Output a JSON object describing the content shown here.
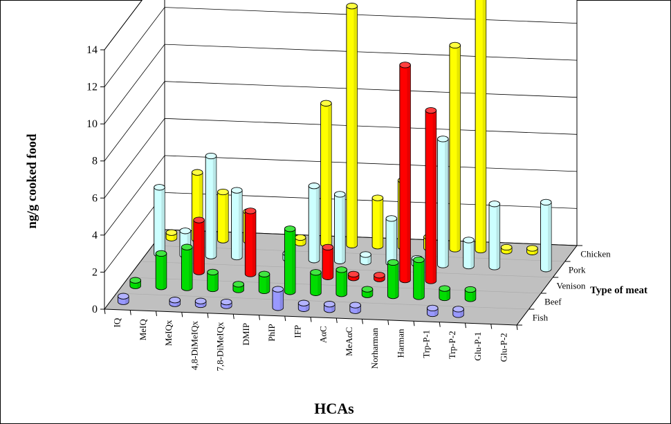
{
  "chart_data": {
    "type": "bar",
    "subtype": "3d-column",
    "title": "",
    "xlabel": "HCAs",
    "ylabel": "ng/g cooked food",
    "zlabel": "Type of meat",
    "ylim": [
      0,
      14
    ],
    "yticks": [
      "0",
      "2",
      "4",
      "6",
      "8",
      "10",
      "12",
      "14"
    ],
    "grid": true,
    "categories": [
      "IQ",
      "MeIQ",
      "MeIQx",
      "4,8-DiMeIQx",
      "7,8-DiMeIQx",
      "DMIP",
      "PhIP",
      "IFP",
      "AαC",
      "MeAαC",
      "Norharman",
      "Harman",
      "Trp-P-1",
      "Trp-P-2",
      "Glu-P-1",
      "Glu-P-2"
    ],
    "series": [
      {
        "name": "Fish",
        "color": "#9999ff",
        "values": [
          0.3,
          null,
          0.2,
          0.2,
          0.2,
          null,
          1.0,
          0.3,
          0.3,
          0.3,
          null,
          null,
          0.3,
          0.3,
          null,
          null
        ]
      },
      {
        "name": "Beef",
        "color": "#00dd00",
        "values": [
          0.3,
          1.8,
          2.2,
          0.9,
          0.3,
          0.9,
          3.4,
          1.1,
          1.3,
          0.3,
          1.8,
          2.0,
          0.5,
          0.5,
          null,
          null
        ]
      },
      {
        "name": "Venison",
        "color": "#ff0000",
        "values": [
          null,
          null,
          2.8,
          null,
          3.4,
          null,
          null,
          1.6,
          0.2,
          0.2,
          11.6,
          9.2,
          null,
          null,
          null,
          null
        ]
      },
      {
        "name": "Pork",
        "color": "#ccffff",
        "values": [
          3.6,
          1.3,
          5.4,
          3.6,
          null,
          0.3,
          4.0,
          3.6,
          0.4,
          2.4,
          0.3,
          6.8,
          1.4,
          3.4,
          null,
          3.6
        ]
      },
      {
        "name": "Chicken",
        "color": "#ffff00",
        "values": [
          0.3,
          3.6,
          2.6,
          1.6,
          null,
          0.3,
          7.6,
          12.9,
          2.6,
          3.6,
          0.6,
          11.0,
          14.0,
          0.2,
          0.2,
          null
        ]
      }
    ],
    "legend": "none"
  },
  "colors": {
    "floor": "#c0c0c0",
    "plot_frame": "#000000"
  }
}
